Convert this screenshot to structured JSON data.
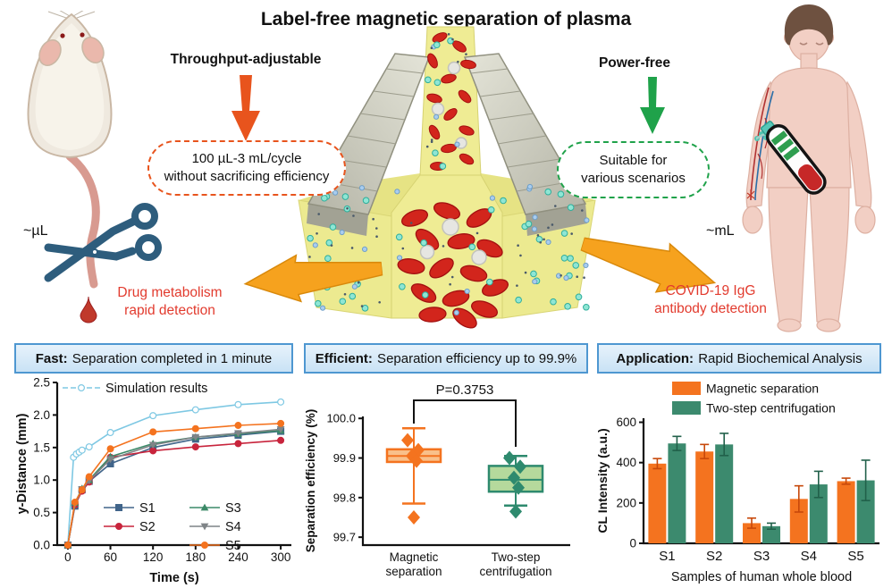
{
  "title": "Label-free magnetic separation of plasma",
  "colors": {
    "throughput_accent": "#e8541d",
    "power_accent": "#1fa24a",
    "application_text": "#e23b2e",
    "application_arrow": "#f6a21e",
    "panel_header_border": "#4e97d1",
    "panel_header_bg": "#cfe4f6"
  },
  "top": {
    "mouse_volume_label": "~µL",
    "human_volume_label": "~mL",
    "throughput": {
      "heading": "Throughput-adjustable",
      "box_line1": "100 µL-3 mL/cycle",
      "box_line2": "without sacrificing efficiency"
    },
    "power": {
      "heading": "Power-free",
      "box_line1": "Suitable for",
      "box_line2": "various scenarios"
    },
    "left_application": {
      "line1": "Drug metabolism",
      "line2": "rapid detection"
    },
    "right_application": {
      "line1": "COVID-19 IgG",
      "line2": "antibody detection"
    }
  },
  "panels": [
    {
      "header_bold": "Fast:",
      "header_rest": " Separation completed in 1 minute"
    },
    {
      "header_bold": "Efficient:",
      "header_rest": " Separation efficiency up to 99.9%"
    },
    {
      "header_bold": "Application:",
      "header_rest": " Rapid Biochemical Analysis"
    }
  ],
  "chart_data": [
    {
      "type": "line",
      "xlabel": "Time (s)",
      "ylabel": "y-Distance (mm)",
      "xlim": [
        -15,
        315
      ],
      "ylim": [
        0,
        2.5
      ],
      "xticks": [
        0,
        60,
        120,
        180,
        240,
        300
      ],
      "yticks": [
        0.0,
        0.5,
        1.0,
        1.5,
        2.0,
        2.5
      ],
      "legend_position": "top and inside lower-right",
      "series": [
        {
          "name": "Simulation results",
          "color": "#7ec8e3",
          "marker": "circle",
          "open": true,
          "x": [
            0,
            8,
            12,
            16,
            20,
            30,
            60,
            120,
            180,
            240,
            300
          ],
          "values": [
            0,
            1.35,
            1.4,
            1.43,
            1.46,
            1.51,
            1.73,
            1.99,
            2.08,
            2.16,
            2.2
          ]
        },
        {
          "name": "S1",
          "color": "#41658a",
          "marker": "square",
          "x": [
            0,
            10,
            20,
            30,
            60,
            120,
            180,
            240,
            300
          ],
          "values": [
            0,
            0.6,
            0.85,
            0.98,
            1.25,
            1.5,
            1.63,
            1.69,
            1.75
          ]
        },
        {
          "name": "S2",
          "color": "#c8243c",
          "marker": "circle",
          "x": [
            0,
            10,
            20,
            30,
            60,
            120,
            180,
            240,
            300
          ],
          "values": [
            0,
            0.62,
            0.83,
            0.97,
            1.35,
            1.45,
            1.51,
            1.56,
            1.61
          ]
        },
        {
          "name": "S3",
          "color": "#3c8a68",
          "marker": "tri-up",
          "x": [
            0,
            10,
            20,
            30,
            60,
            120,
            180,
            240,
            300
          ],
          "values": [
            0,
            0.65,
            0.87,
            1.0,
            1.36,
            1.56,
            1.66,
            1.71,
            1.76
          ]
        },
        {
          "name": "S4",
          "color": "#7f8487",
          "marker": "tri-down",
          "x": [
            0,
            10,
            20,
            30,
            60,
            120,
            180,
            240,
            300
          ],
          "values": [
            0,
            0.63,
            0.86,
            0.99,
            1.32,
            1.54,
            1.66,
            1.72,
            1.78
          ]
        },
        {
          "name": "S5",
          "color": "#f4731f",
          "marker": "circle",
          "x": [
            0,
            10,
            20,
            30,
            60,
            120,
            180,
            240,
            300
          ],
          "values": [
            0,
            0.66,
            0.85,
            1.05,
            1.48,
            1.74,
            1.79,
            1.84,
            1.87
          ]
        }
      ]
    },
    {
      "type": "box",
      "ylabel": "Separation efficiency (%)",
      "ylim": [
        99.68,
        100.005
      ],
      "yticks": [
        99.7,
        99.8,
        99.9,
        100.0
      ],
      "annotation": "P=0.3753",
      "groups": [
        {
          "label_line1": "Magnetic",
          "label_line2": "separation",
          "color": "#f4731f",
          "fill": "#f9c08a",
          "whisker_low": 99.785,
          "q1": 99.89,
          "median": 99.905,
          "q3": 99.922,
          "whisker_high": 99.975,
          "points": [
            99.945,
            99.92,
            99.905,
            99.893
          ],
          "outliers": [
            99.75
          ]
        },
        {
          "label_line1": "Two-step",
          "label_line2": "centrifugation",
          "color": "#2e8a6e",
          "fill": "#b5d99c",
          "whisker_low": 99.78,
          "q1": 99.815,
          "median": 99.845,
          "q3": 99.88,
          "whisker_high": 99.905,
          "points": [
            99.9,
            99.878,
            99.85,
            99.825
          ],
          "outliers": [
            99.765
          ]
        }
      ]
    },
    {
      "type": "bar",
      "xlabel": "Samples of human whole blood",
      "ylabel": "CL Intensity (a.u.)",
      "categories": [
        "S1",
        "S2",
        "S3",
        "S4",
        "S5"
      ],
      "ylim": [
        0,
        620
      ],
      "yticks": [
        0,
        200,
        400,
        600
      ],
      "legend_position": "top",
      "series": [
        {
          "name": "Magnetic separation",
          "color": "#f4731f",
          "error_color": "#c7480a",
          "values": [
            395,
            455,
            100,
            220,
            308
          ],
          "errors": [
            25,
            35,
            25,
            65,
            15
          ]
        },
        {
          "name": "Two-step centrifugation",
          "color": "#3c8a6e",
          "error_color": "#21604a",
          "values": [
            495,
            490,
            85,
            292,
            312
          ],
          "errors": [
            35,
            55,
            15,
            65,
            100
          ]
        }
      ]
    }
  ]
}
